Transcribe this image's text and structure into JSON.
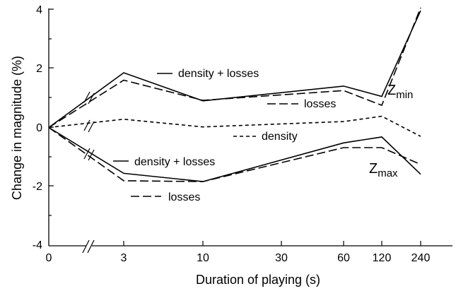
{
  "chart_data": {
    "type": "line",
    "xlabel": "Duration of playing (s)",
    "ylabel": "Change in magnitude (%)",
    "x_categories": [
      "0",
      "3",
      "10",
      "30",
      "60",
      "120",
      "240"
    ],
    "ylim": [
      -4,
      4
    ],
    "y_ticks": [
      "4",
      "2",
      "0",
      "-2",
      "-4"
    ],
    "x_positions": [
      0,
      3,
      10,
      60,
      120,
      240
    ],
    "series": [
      {
        "name": "density + losses",
        "group": "Zmin",
        "style": "solid",
        "values": [
          0,
          1.85,
          0.9,
          1.4,
          1.05,
          3.95
        ]
      },
      {
        "name": "losses",
        "group": "Zmin",
        "style": "dashed",
        "values": [
          0,
          1.6,
          0.92,
          1.25,
          0.75,
          4.05
        ]
      },
      {
        "name": "density",
        "group": "",
        "style": "dotted",
        "values": [
          0,
          0.28,
          0.02,
          0.2,
          0.38,
          -0.3
        ]
      },
      {
        "name": "density + losses",
        "group": "Zmax",
        "style": "solid",
        "values": [
          0,
          -1.55,
          -1.83,
          -0.52,
          -0.32,
          -1.58
        ]
      },
      {
        "name": "losses",
        "group": "Zmax",
        "style": "dashed",
        "values": [
          0,
          -1.8,
          -1.83,
          -0.68,
          -0.68,
          -1.25
        ]
      }
    ],
    "annotations": {
      "zmin_main": "Z",
      "zmin_sub": "min",
      "zmax_main": "Z",
      "zmax_sub": "max"
    }
  }
}
